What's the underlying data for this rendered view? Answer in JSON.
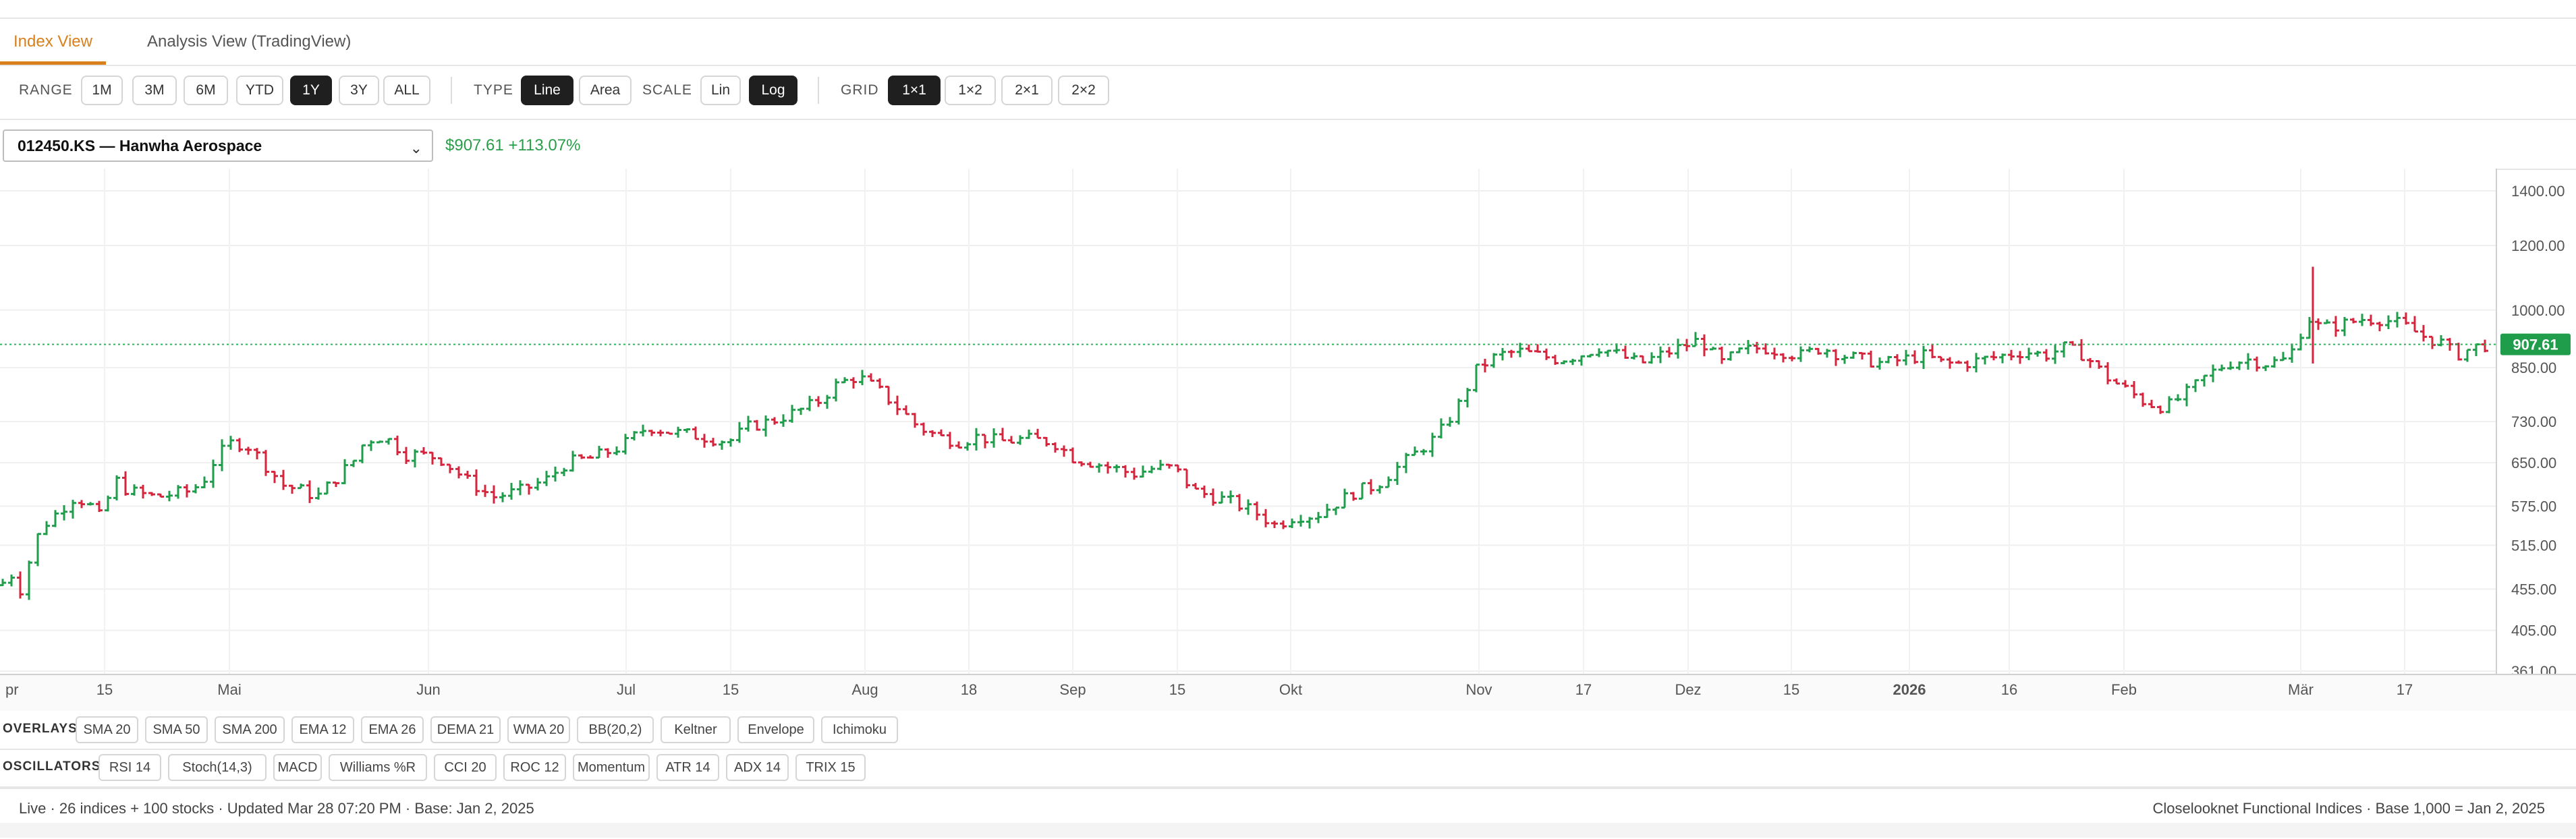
{
  "tabs": [
    {
      "label": "Index View",
      "active": true
    },
    {
      "label": "Analysis View (TradingView)",
      "active": false
    }
  ],
  "toolbar": {
    "range_label": "RANGE",
    "ranges": [
      "1M",
      "3M",
      "6M",
      "YTD",
      "1Y",
      "3Y",
      "ALL"
    ],
    "range_selected": "1Y",
    "type_label": "TYPE",
    "types": [
      "Line",
      "Area"
    ],
    "type_selected": "Line",
    "scale_label": "SCALE",
    "scales": [
      "Lin",
      "Log"
    ],
    "scale_selected": "Log",
    "grid_label": "GRID",
    "grids": [
      "1×1",
      "1×2",
      "2×1",
      "2×2"
    ],
    "grid_selected": "1×1"
  },
  "symbol": {
    "selected": "012450.KS — Hanwha Aerospace",
    "price": "$907.61",
    "change": "+113.07%"
  },
  "colors": {
    "up": "#1f9d4b",
    "down": "#d5253d",
    "accent": "#d9801c",
    "price_line": "#2fb35a"
  },
  "chart_data": {
    "type": "ohlc",
    "scale": "log",
    "current_price": 907.61,
    "current_price_label": "907.61",
    "y_ticks": [
      361.0,
      405.0,
      455.0,
      515.0,
      575.0,
      650.0,
      730.0,
      850.0,
      1000.0,
      1200.0,
      1400.0
    ],
    "y_tick_labels": [
      "361.00",
      "405.00",
      "455.00",
      "515.00",
      "575.00",
      "650.00",
      "730.00",
      "850.00",
      "1000.00",
      "1200.00",
      "1400.00"
    ],
    "x_labels": [
      "pr",
      "15",
      "Mai",
      "Jun",
      "Jul",
      "15",
      "Aug",
      "18",
      "Sep",
      "15",
      "Okt",
      "Nov",
      "17",
      "Dez",
      "15",
      "2026",
      "16",
      "Feb",
      "Mär",
      "17"
    ],
    "x_label_bold": "2026",
    "anchors": [
      [
        0,
        460
      ],
      [
        18,
        475
      ],
      [
        30,
        455
      ],
      [
        60,
        540
      ],
      [
        80,
        560
      ],
      [
        110,
        590
      ],
      [
        130,
        580
      ],
      [
        150,
        555
      ],
      [
        170,
        620
      ],
      [
        190,
        600
      ],
      [
        230,
        590
      ],
      [
        280,
        600
      ],
      [
        300,
        615
      ],
      [
        320,
        660
      ],
      [
        345,
        690
      ],
      [
        370,
        680
      ],
      [
        390,
        650
      ],
      [
        420,
        610
      ],
      [
        450,
        600
      ],
      [
        470,
        590
      ],
      [
        500,
        625
      ],
      [
        525,
        655
      ],
      [
        540,
        690
      ],
      [
        560,
        700
      ],
      [
        580,
        690
      ],
      [
        600,
        665
      ],
      [
        620,
        665
      ],
      [
        650,
        660
      ],
      [
        690,
        620
      ],
      [
        730,
        590
      ],
      [
        770,
        600
      ],
      [
        810,
        620
      ],
      [
        840,
        650
      ],
      [
        880,
        660
      ],
      [
        920,
        680
      ],
      [
        940,
        700
      ],
      [
        960,
        720
      ],
      [
        990,
        710
      ],
      [
        1040,
        700
      ],
      [
        1080,
        690
      ],
      [
        1110,
        720
      ],
      [
        1140,
        730
      ],
      [
        1180,
        750
      ],
      [
        1210,
        770
      ],
      [
        1240,
        810
      ],
      [
        1270,
        830
      ],
      [
        1300,
        800
      ],
      [
        1330,
        760
      ],
      [
        1360,
        720
      ],
      [
        1390,
        700
      ],
      [
        1420,
        690
      ],
      [
        1450,
        700
      ],
      [
        1480,
        690
      ],
      [
        1520,
        695
      ],
      [
        1560,
        690
      ],
      [
        1590,
        660
      ],
      [
        1620,
        650
      ],
      [
        1650,
        640
      ],
      [
        1680,
        630
      ],
      [
        1710,
        640
      ],
      [
        1740,
        640
      ],
      [
        1770,
        600
      ],
      [
        1800,
        590
      ],
      [
        1830,
        580
      ],
      [
        1860,
        565
      ],
      [
        1890,
        545
      ],
      [
        1920,
        560
      ],
      [
        1950,
        560
      ],
      [
        1980,
        580
      ],
      [
        2010,
        600
      ],
      [
        2040,
        610
      ],
      [
        2070,
        640
      ],
      [
        2100,
        670
      ],
      [
        2130,
        700
      ],
      [
        2160,
        760
      ],
      [
        2190,
        850
      ],
      [
        2220,
        880
      ],
      [
        2250,
        890
      ],
      [
        2280,
        880
      ],
      [
        2310,
        870
      ],
      [
        2340,
        880
      ],
      [
        2370,
        900
      ],
      [
        2400,
        880
      ],
      [
        2430,
        860
      ],
      [
        2460,
        880
      ],
      [
        2490,
        900
      ],
      [
        2520,
        920
      ],
      [
        2550,
        860
      ],
      [
        2580,
        890
      ],
      [
        2610,
        900
      ],
      [
        2640,
        890
      ],
      [
        2670,
        880
      ],
      [
        2700,
        900
      ],
      [
        2730,
        880
      ],
      [
        2760,
        870
      ],
      [
        2790,
        860
      ],
      [
        2820,
        870
      ],
      [
        2850,
        880
      ],
      [
        2880,
        860
      ],
      [
        2910,
        860
      ],
      [
        2940,
        870
      ],
      [
        2970,
        880
      ],
      [
        3000,
        890
      ],
      [
        3030,
        880
      ],
      [
        3060,
        900
      ],
      [
        3090,
        880
      ],
      [
        3120,
        830
      ],
      [
        3150,
        800
      ],
      [
        3180,
        770
      ],
      [
        3210,
        760
      ],
      [
        3240,
        790
      ],
      [
        3270,
        830
      ],
      [
        3300,
        860
      ],
      [
        3330,
        870
      ],
      [
        3360,
        860
      ],
      [
        3390,
        870
      ],
      [
        3400,
        900
      ],
      [
        3420,
        980
      ],
      [
        3440,
        950
      ],
      [
        3470,
        960
      ],
      [
        3500,
        975
      ],
      [
        3530,
        975
      ],
      [
        3560,
        960
      ],
      [
        3590,
        930
      ],
      [
        3620,
        910
      ],
      [
        3640,
        880
      ],
      [
        3665,
        900
      ],
      [
        3690,
        908
      ]
    ]
  },
  "overlays": {
    "label": "OVERLAYS",
    "items": [
      "SMA 20",
      "SMA 50",
      "SMA 200",
      "EMA 12",
      "EMA 26",
      "DEMA 21",
      "WMA 20",
      "BB(20,2)",
      "Keltner",
      "Envelope",
      "Ichimoku"
    ]
  },
  "oscillators": {
    "label": "OSCILLATORS",
    "items": [
      "RSI 14",
      "Stoch(14,3)",
      "MACD",
      "Williams %R",
      "CCI 20",
      "ROC 12",
      "Momentum",
      "ATR 14",
      "ADX 14",
      "TRIX 15"
    ]
  },
  "status": {
    "left": "Live · 26 indices + 100 stocks · Updated Mar 28 07:20 PM · Base: Jan 2, 2025",
    "right": "Closelooknet Functional Indices · Base 1,000 = Jan 2, 2025"
  }
}
